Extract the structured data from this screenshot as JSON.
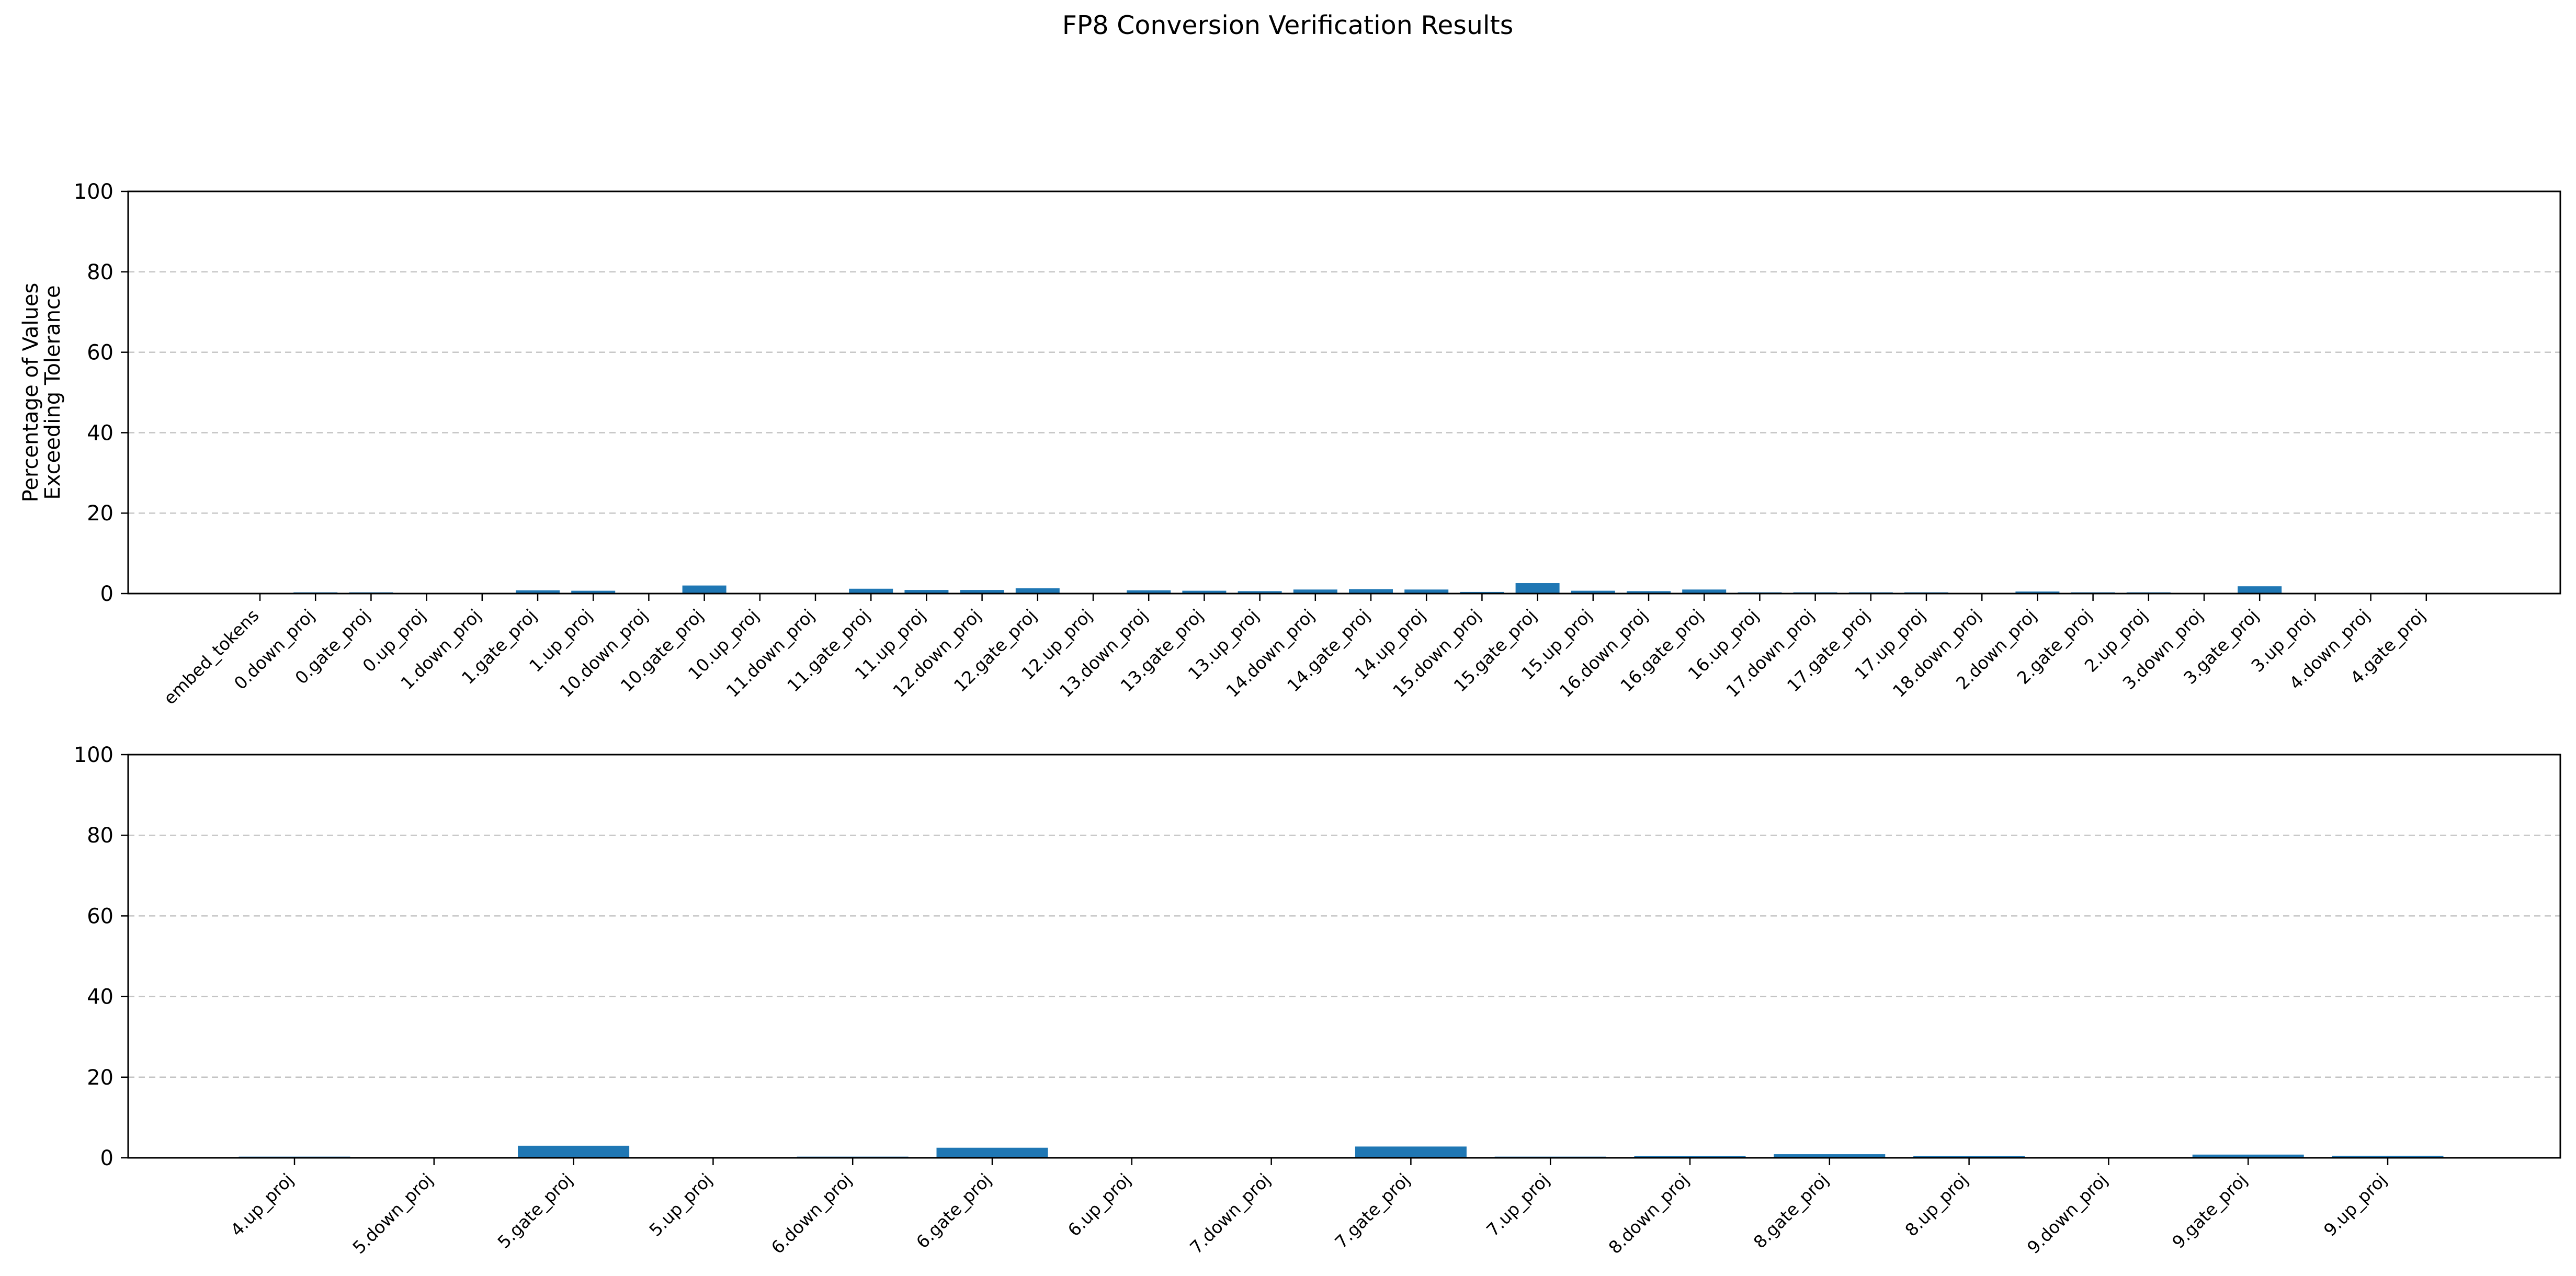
{
  "title": "FP8 Conversion Verification Results",
  "chart_data": [
    {
      "type": "bar",
      "ylabel": [
        "Percentage of Values",
        "Exceeding Tolerance"
      ],
      "ylim": [
        0,
        100
      ],
      "yticks": [
        0,
        20,
        40,
        60,
        80,
        100
      ],
      "grid": "y, dashed",
      "bar_color": "#1f77b4",
      "categories": [
        "embed_tokens",
        "0.down_proj",
        "0.gate_proj",
        "0.up_proj",
        "1.down_proj",
        "1.gate_proj",
        "1.up_proj",
        "10.down_proj",
        "10.gate_proj",
        "10.up_proj",
        "11.down_proj",
        "11.gate_proj",
        "11.up_proj",
        "12.down_proj",
        "12.gate_proj",
        "12.up_proj",
        "13.down_proj",
        "13.gate_proj",
        "13.up_proj",
        "14.down_proj",
        "14.gate_proj",
        "14.up_proj",
        "15.down_proj",
        "15.gate_proj",
        "15.up_proj",
        "16.down_proj",
        "16.gate_proj",
        "16.up_proj",
        "17.down_proj",
        "17.gate_proj",
        "17.up_proj",
        "18.down_proj",
        "2.down_proj",
        "2.gate_proj",
        "2.up_proj",
        "3.down_proj",
        "3.gate_proj",
        "3.up_proj",
        "4.down_proj",
        "4.gate_proj"
      ],
      "values": [
        0,
        0.3,
        0.3,
        0.1,
        0.1,
        0.8,
        0.7,
        0.1,
        2.0,
        0.1,
        0.1,
        1.2,
        0.9,
        0.9,
        1.3,
        0.1,
        0.8,
        0.7,
        0.6,
        1.0,
        1.1,
        1.0,
        0.4,
        2.6,
        0.7,
        0.6,
        1.0,
        0.3,
        0.3,
        0.3,
        0.3,
        0.1,
        0.5,
        0.3,
        0.3,
        0.1,
        1.8,
        0.1,
        0.1,
        0.2
      ]
    },
    {
      "type": "bar",
      "ylim": [
        0,
        100
      ],
      "yticks": [
        0,
        20,
        40,
        60,
        80,
        100
      ],
      "grid": "y, dashed",
      "bar_color": "#1f77b4",
      "categories": [
        "4.up_proj",
        "5.down_proj",
        "5.gate_proj",
        "5.up_proj",
        "6.down_proj",
        "6.gate_proj",
        "6.up_proj",
        "7.down_proj",
        "7.gate_proj",
        "7.up_proj",
        "8.down_proj",
        "8.gate_proj",
        "8.up_proj",
        "9.down_proj",
        "9.gate_proj",
        "9.up_proj"
      ],
      "values": [
        0.3,
        0.1,
        3.0,
        0.1,
        0.3,
        2.5,
        0.1,
        0.1,
        2.8,
        0.3,
        0.4,
        0.9,
        0.4,
        0.2,
        0.8,
        0.5
      ]
    }
  ]
}
